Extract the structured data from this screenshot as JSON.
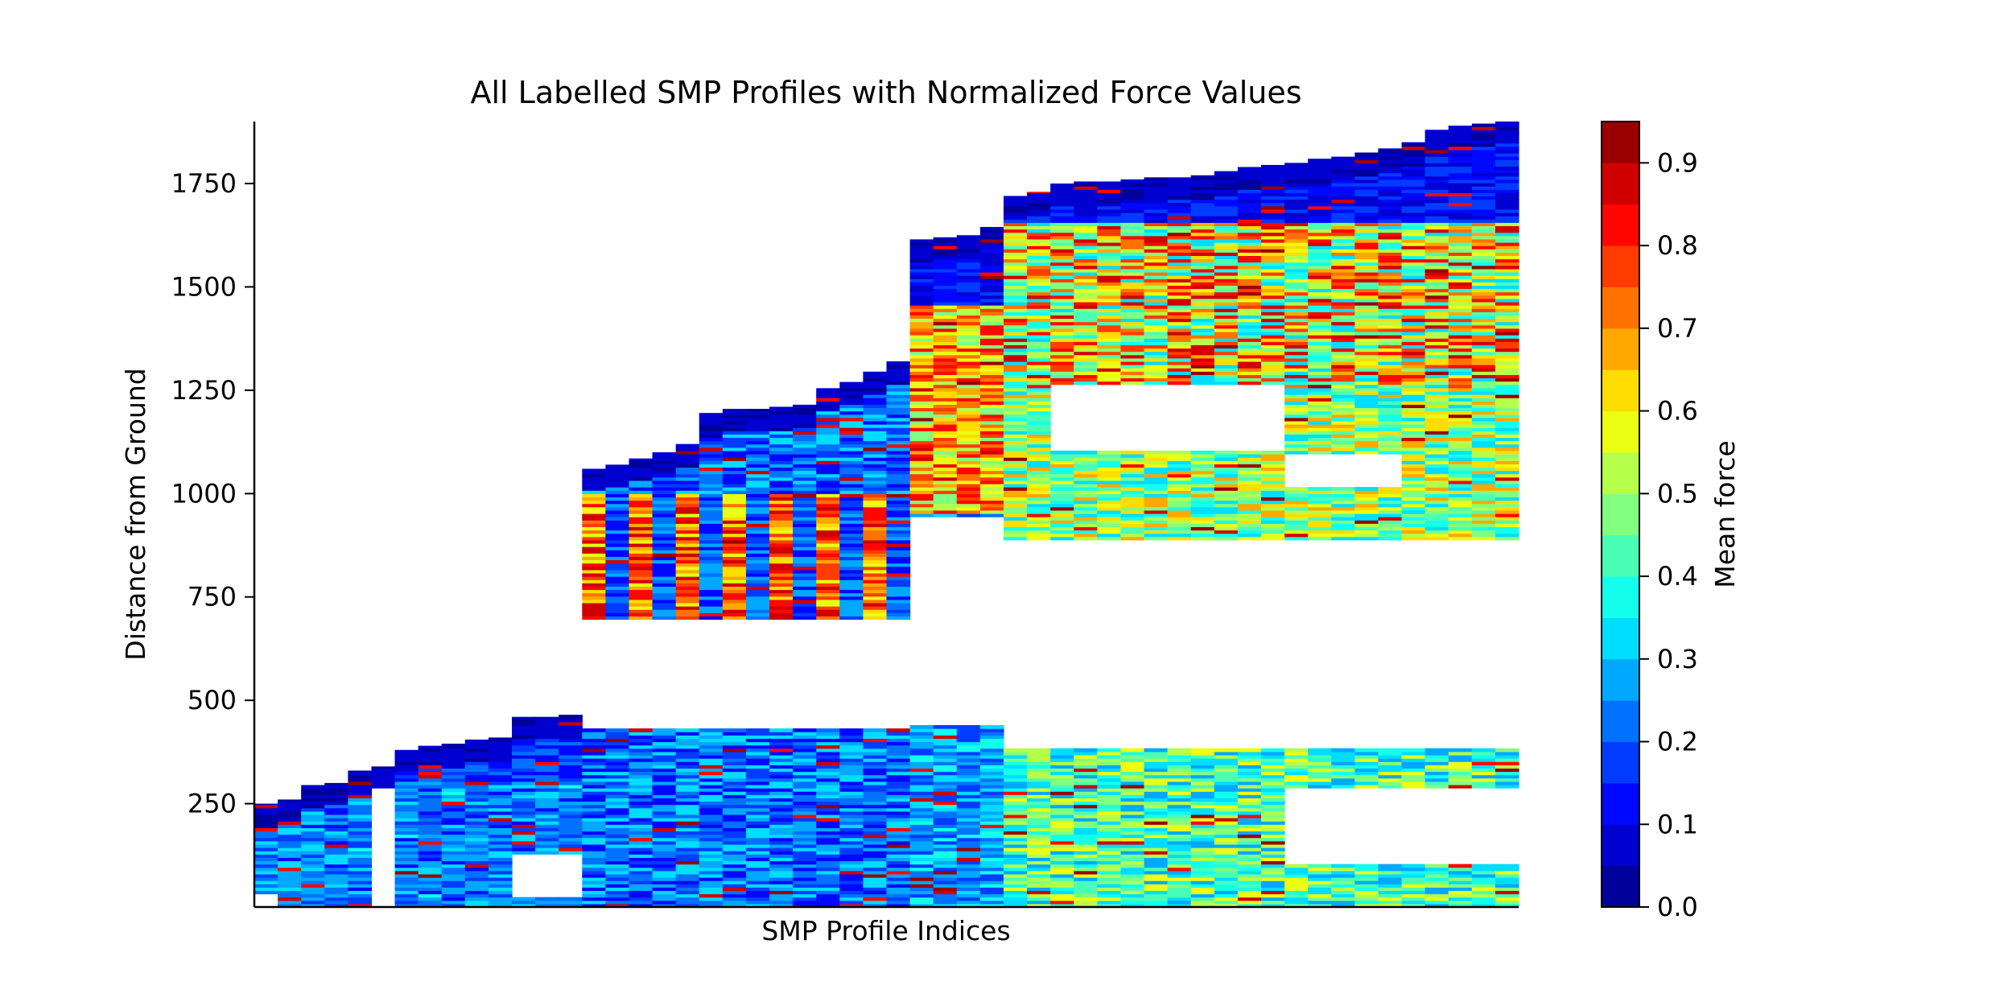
{
  "chart_data": {
    "type": "heatmap",
    "title": "All Labelled SMP Profiles with Normalized Force Values",
    "xlabel": "SMP Profile Indices",
    "ylabel": "Distance from Ground",
    "ylim": [
      0,
      1900
    ],
    "y_ticks": [
      250,
      500,
      750,
      1000,
      1250,
      1500,
      1750
    ],
    "profile_count": 54,
    "colorbar": {
      "label": "Mean force",
      "range": [
        0.0,
        0.95
      ],
      "levels": 19,
      "ticks": [
        "0.0",
        "0.1",
        "0.2",
        "0.3",
        "0.4",
        "0.5",
        "0.6",
        "0.7",
        "0.8",
        "0.9"
      ],
      "colormap": "jet"
    },
    "profile_heights": [
      250,
      260,
      295,
      300,
      330,
      340,
      380,
      390,
      395,
      405,
      410,
      460,
      460,
      465,
      1060,
      1070,
      1085,
      1100,
      1120,
      1195,
      1205,
      1205,
      1210,
      1215,
      1255,
      1270,
      1295,
      1320,
      1615,
      1620,
      1625,
      1645,
      1720,
      1730,
      1750,
      1755,
      1755,
      1760,
      1765,
      1765,
      1770,
      1780,
      1790,
      1795,
      1800,
      1810,
      1815,
      1825,
      1835,
      1850,
      1880,
      1890,
      1895,
      1900
    ],
    "gaps": [
      {
        "start": 0,
        "end": 1,
        "from": 0,
        "to": 30
      },
      {
        "start": 5,
        "end": 6,
        "from": 0,
        "to": 280
      },
      {
        "start": 11,
        "end": 14,
        "from": 20,
        "to": 120
      },
      {
        "start": 14,
        "end": 28,
        "from": 430,
        "to": 690
      },
      {
        "start": 28,
        "end": 32,
        "from": 440,
        "to": 940
      },
      {
        "start": 32,
        "end": 54,
        "from": 380,
        "to": 880
      },
      {
        "start": 34,
        "end": 44,
        "from": 1100,
        "to": 1260
      },
      {
        "start": 44,
        "end": 54,
        "from": 100,
        "to": 280
      },
      {
        "start": 44,
        "end": 49,
        "from": 1010,
        "to": 1090
      }
    ]
  }
}
